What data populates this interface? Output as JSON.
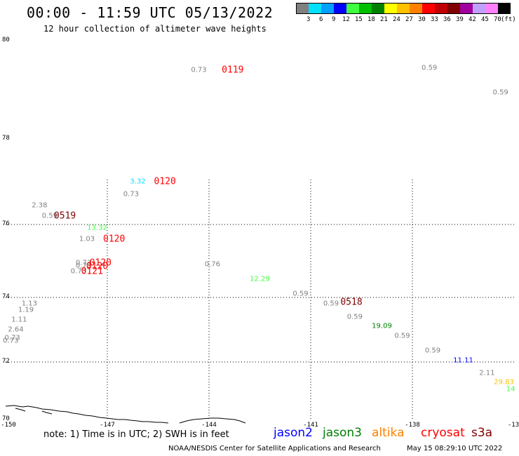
{
  "header": {
    "title": "00:00 - 11:59 UTC 05/13/2022",
    "subtitle": "12 hour collection of altimeter wave heights"
  },
  "color_scale": {
    "labels": [
      "3",
      "6",
      "9",
      "12",
      "15",
      "18",
      "21",
      "24",
      "27",
      "30",
      "33",
      "36",
      "39",
      "42",
      "45",
      "70"
    ],
    "unit": "(ft)",
    "colors": [
      "#808080",
      "#00e0ff",
      "#00a0ff",
      "#0000ff",
      "#40ff40",
      "#00c000",
      "#008000",
      "#ffff00",
      "#ffc000",
      "#ff8000",
      "#ff0000",
      "#c00000",
      "#800000",
      "#a000a0",
      "#c0a0ff",
      "#ff80ff",
      "#000000"
    ]
  },
  "map": {
    "lat_labels": [
      "80",
      "78",
      "76",
      "74",
      "72",
      "70"
    ],
    "lon_labels": [
      "-150",
      "-147",
      "-144",
      "-141",
      "-138",
      "-13"
    ]
  },
  "chart_data": {
    "type": "scatter",
    "xlabel": "",
    "ylabel": "",
    "xlim": [
      -150,
      -135
    ],
    "ylim": [
      70,
      80
    ],
    "wave_heights": [
      {
        "lon": -144.3,
        "lat": 79.4,
        "value": "0.73",
        "color": "#808080"
      },
      {
        "lon": -137.5,
        "lat": 79.45,
        "value": "0.59",
        "color": "#808080"
      },
      {
        "lon": -135.4,
        "lat": 78.95,
        "value": "0.59",
        "color": "#808080"
      },
      {
        "lon": -146.1,
        "lat": 77.0,
        "value": "3.32",
        "color": "#00e0ff"
      },
      {
        "lon": -146.3,
        "lat": 76.7,
        "value": "0.73",
        "color": "#808080"
      },
      {
        "lon": -149.0,
        "lat": 76.45,
        "value": "2.38",
        "color": "#808080"
      },
      {
        "lon": -148.7,
        "lat": 76.2,
        "value": "0.59",
        "color": "#808080"
      },
      {
        "lon": -147.3,
        "lat": 75.9,
        "value": "13.32",
        "color": "#40ff40"
      },
      {
        "lon": -147.6,
        "lat": 75.6,
        "value": "1.03",
        "color": "#808080"
      },
      {
        "lon": -143.9,
        "lat": 74.9,
        "value": "0.76",
        "color": "#808080"
      },
      {
        "lon": -147.7,
        "lat": 74.95,
        "value": "0.73",
        "color": "#808080"
      },
      {
        "lon": -147.7,
        "lat": 74.86,
        "value": "0.73",
        "color": "#808080"
      },
      {
        "lon": -147.85,
        "lat": 74.72,
        "value": "0.73",
        "color": "#808080"
      },
      {
        "lon": -142.5,
        "lat": 74.5,
        "value": "12.29",
        "color": "#40ff40"
      },
      {
        "lon": -141.3,
        "lat": 74.1,
        "value": "0.59",
        "color": "#808080"
      },
      {
        "lon": -140.4,
        "lat": 73.8,
        "value": "0.59",
        "color": "#808080"
      },
      {
        "lon": -149.3,
        "lat": 73.8,
        "value": "1.13",
        "color": "#808080"
      },
      {
        "lon": -149.4,
        "lat": 73.6,
        "value": "1.19",
        "color": "#808080"
      },
      {
        "lon": -139.7,
        "lat": 73.4,
        "value": "0.59",
        "color": "#808080"
      },
      {
        "lon": -149.6,
        "lat": 73.3,
        "value": "1.11",
        "color": "#808080"
      },
      {
        "lon": -138.9,
        "lat": 73.1,
        "value": "19.09",
        "color": "#008000"
      },
      {
        "lon": -149.7,
        "lat": 73.0,
        "value": "2.64",
        "color": "#808080"
      },
      {
        "lon": -138.3,
        "lat": 72.8,
        "value": "0.59",
        "color": "#808080"
      },
      {
        "lon": -149.8,
        "lat": 72.75,
        "value": "0.73",
        "color": "#808080"
      },
      {
        "lon": -149.85,
        "lat": 72.65,
        "value": "0.73",
        "color": "#808080"
      },
      {
        "lon": -137.4,
        "lat": 72.35,
        "value": "0.59",
        "color": "#808080"
      },
      {
        "lon": -136.5,
        "lat": 72.05,
        "value": "11.11",
        "color": "#0000ff"
      },
      {
        "lon": -135.8,
        "lat": 71.6,
        "value": "2.11",
        "color": "#808080"
      },
      {
        "lon": -135.3,
        "lat": 71.3,
        "value": "29.83",
        "color": "#ffc000"
      },
      {
        "lon": -135.1,
        "lat": 71.05,
        "value": "14",
        "color": "#40ff40"
      }
    ],
    "time_labels": [
      {
        "lon": -143.3,
        "lat": 79.4,
        "value": "0119",
        "color": "#ff0000"
      },
      {
        "lon": -145.3,
        "lat": 77.0,
        "value": "0120",
        "color": "#ff0000"
      },
      {
        "lon": -148.25,
        "lat": 76.2,
        "value": "0519",
        "color": "#800000"
      },
      {
        "lon": -146.8,
        "lat": 75.6,
        "value": "0120",
        "color": "#ff0000"
      },
      {
        "lon": -147.2,
        "lat": 74.95,
        "value": "0120",
        "color": "#ff0000"
      },
      {
        "lon": -147.3,
        "lat": 74.85,
        "value": "0120",
        "color": "#ff0000"
      },
      {
        "lon": -147.45,
        "lat": 74.72,
        "value": "0121",
        "color": "#ff0000"
      },
      {
        "lon": -139.8,
        "lat": 73.85,
        "value": "0518",
        "color": "#800000"
      }
    ]
  },
  "footer": {
    "note": "note: 1) Time is in UTC; 2) SWH is in feet",
    "legend": [
      {
        "name": "jason2",
        "color": "#0000ff"
      },
      {
        "name": "jason3",
        "color": "#008000"
      },
      {
        "name": "altika",
        "color": "#ff8000"
      },
      {
        "name": "cryosat",
        "color": "#ff0000"
      },
      {
        "name": "s3a",
        "color": "#800000"
      }
    ],
    "credit": "NOAA/NESDIS Center for Satellite Applications and Research",
    "timestamp": "May 15 08:29:10 UTC 2022"
  }
}
